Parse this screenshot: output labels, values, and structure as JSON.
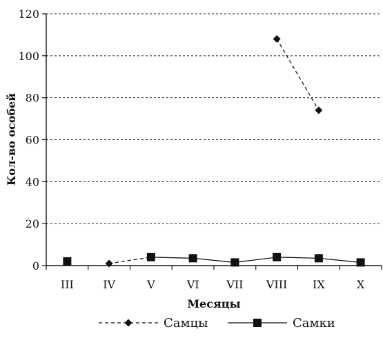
{
  "chart_data": {
    "type": "line",
    "title": "",
    "xlabel": "Месяцы",
    "ylabel": "Кол-во особей",
    "categories": [
      "III",
      "IV",
      "V",
      "VI",
      "VII",
      "VIII",
      "IX",
      "X"
    ],
    "ylim": [
      0,
      120
    ],
    "yticks": [
      0,
      20,
      40,
      60,
      80,
      100,
      120
    ],
    "grid": "horizontal dashed",
    "legend_position": "bottom",
    "series": [
      {
        "name": "Самцы",
        "marker": "diamond",
        "line_style": "dashed",
        "color": "#111111",
        "values": [
          null,
          1,
          4,
          null,
          null,
          108,
          74,
          null
        ]
      },
      {
        "name": "Самки",
        "marker": "square",
        "line_style": "solid",
        "color": "#111111",
        "values": [
          2,
          null,
          4,
          3.5,
          1.5,
          4,
          3.5,
          1.5
        ]
      }
    ]
  }
}
